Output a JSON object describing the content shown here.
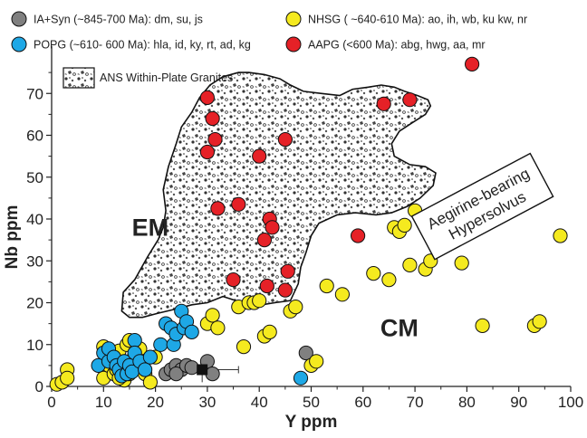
{
  "chart_data": {
    "type": "scatter",
    "xlabel": "Y ppm",
    "ylabel": "Nb ppm",
    "xlim": [
      0,
      100
    ],
    "ylim": [
      0,
      80
    ],
    "x_ticks": [
      "0",
      "10",
      "20",
      "30",
      "40",
      "50",
      "60",
      "70",
      "80",
      "90",
      "100"
    ],
    "y_ticks": [
      "0",
      "10",
      "20",
      "30",
      "40",
      "50",
      "60",
      "70"
    ],
    "grid": false,
    "legend_position": "top",
    "legend": [
      {
        "label": "IA+Syn (~845-700 Ma): dm, su, js",
        "color": "#808080"
      },
      {
        "label": "NHSG ( ~640-610 Ma): ao, ih, wb, ku kw, nr",
        "color": "#f5ea1f"
      },
      {
        "label": "POPG (~610- 600 Ma): hla, id, ky, rt, ad, kg",
        "color": "#1ea8e6"
      },
      {
        "label": "AAPG (<600 Ma): abg, hwg, aa, mr",
        "color": "#e52127"
      }
    ],
    "field_legend": "ANS Within-Plate Granites",
    "region_labels": [
      {
        "text": "EM",
        "x": 19,
        "y": 36
      },
      {
        "text": "CM",
        "x": 67,
        "y": 12
      }
    ],
    "annotation_box": {
      "line1": "Aegirine-bearing",
      "line2": "Hypersolvus",
      "x": 83,
      "y": 43
    },
    "errorbar_point": {
      "x": 29,
      "y": 4,
      "x_err_low": 4.5,
      "x_err_high": 7,
      "y_err": 3
    },
    "field_polygon": [
      [
        13.5,
        18
      ],
      [
        13.8,
        22.5
      ],
      [
        16,
        25.5
      ],
      [
        18.5,
        31
      ],
      [
        20.5,
        35
      ],
      [
        21.5,
        38
      ],
      [
        22,
        42
      ],
      [
        21.5,
        47
      ],
      [
        22.5,
        52.5
      ],
      [
        24,
        58
      ],
      [
        25,
        62
      ],
      [
        27,
        65.5
      ],
      [
        28.5,
        69
      ],
      [
        30.5,
        72
      ],
      [
        33,
        74
      ],
      [
        36,
        75
      ],
      [
        38,
        75
      ],
      [
        41,
        74.5
      ],
      [
        44,
        73.5
      ],
      [
        46,
        72
      ],
      [
        48.5,
        70.5
      ],
      [
        52,
        70
      ],
      [
        55.5,
        69.5
      ],
      [
        58,
        71
      ],
      [
        61,
        71.5
      ],
      [
        63.5,
        72
      ],
      [
        66,
        71.5
      ],
      [
        68,
        70.5
      ],
      [
        70.5,
        69.5
      ],
      [
        72.5,
        68.5
      ],
      [
        73,
        67
      ],
      [
        72,
        65
      ],
      [
        69.5,
        63
      ],
      [
        67,
        61
      ],
      [
        65.5,
        58
      ],
      [
        66,
        55
      ],
      [
        69,
        53
      ],
      [
        72,
        52.5
      ],
      [
        74,
        51
      ],
      [
        73.5,
        48
      ],
      [
        71,
        45
      ],
      [
        68.5,
        43
      ],
      [
        65.5,
        41.5
      ],
      [
        62.5,
        41
      ],
      [
        58.5,
        41.5
      ],
      [
        55,
        41
      ],
      [
        51.5,
        39
      ],
      [
        50,
        36
      ],
      [
        49,
        32
      ],
      [
        48,
        28.5
      ],
      [
        47.5,
        24.5
      ],
      [
        46,
        20.5
      ],
      [
        43,
        20
      ],
      [
        40.5,
        19.5
      ],
      [
        38,
        20
      ],
      [
        35.5,
        20.5
      ],
      [
        33,
        21.5
      ],
      [
        30,
        20
      ],
      [
        27,
        19.5
      ],
      [
        24,
        18.5
      ],
      [
        20.5,
        17.5
      ],
      [
        17.5,
        16.5
      ],
      [
        15,
        16.5
      ],
      [
        13.5,
        18
      ]
    ],
    "series": [
      {
        "name": "IA+Syn",
        "color": "#808080",
        "points": [
          [
            22,
            3
          ],
          [
            23,
            4
          ],
          [
            24,
            5
          ],
          [
            25,
            4
          ],
          [
            24,
            3
          ],
          [
            26,
            5
          ],
          [
            27,
            4.5
          ],
          [
            30,
            6
          ],
          [
            31,
            3
          ],
          [
            49,
            8
          ]
        ]
      },
      {
        "name": "NHSG",
        "color": "#f5ea1f",
        "points": [
          [
            1,
            0.5
          ],
          [
            2,
            1
          ],
          [
            3,
            4
          ],
          [
            3,
            2
          ],
          [
            10,
            2
          ],
          [
            10,
            9.5
          ],
          [
            11,
            5
          ],
          [
            12,
            3
          ],
          [
            12.5,
            4
          ],
          [
            13,
            7
          ],
          [
            13,
            8.5
          ],
          [
            14,
            1.5
          ],
          [
            14.5,
            10
          ],
          [
            15,
            11
          ],
          [
            16,
            7.5
          ],
          [
            16,
            5
          ],
          [
            17,
            9
          ],
          [
            17.5,
            6
          ],
          [
            18,
            3
          ],
          [
            19,
            1
          ],
          [
            20,
            7
          ],
          [
            13,
            2
          ],
          [
            15,
            3
          ],
          [
            30,
            15
          ],
          [
            31,
            17
          ],
          [
            32,
            14
          ],
          [
            36,
            19
          ],
          [
            37,
            9.5
          ],
          [
            38,
            20
          ],
          [
            39,
            20
          ],
          [
            40,
            20.5
          ],
          [
            41,
            12
          ],
          [
            42,
            13
          ],
          [
            46,
            18
          ],
          [
            47,
            19
          ],
          [
            50,
            5
          ],
          [
            51,
            6
          ],
          [
            53,
            24
          ],
          [
            56,
            22
          ],
          [
            62,
            27
          ],
          [
            65,
            25.5
          ],
          [
            66,
            38
          ],
          [
            67,
            37
          ],
          [
            68,
            38.5
          ],
          [
            69,
            29
          ],
          [
            70,
            42
          ],
          [
            72,
            28
          ],
          [
            73,
            30
          ],
          [
            79,
            29.5
          ],
          [
            83,
            14.5
          ],
          [
            93,
            14.5
          ],
          [
            94,
            15.5
          ],
          [
            98,
            36
          ]
        ]
      },
      {
        "name": "POPG",
        "color": "#1ea8e6",
        "points": [
          [
            9,
            5
          ],
          [
            10,
            8
          ],
          [
            11,
            6
          ],
          [
            11,
            9
          ],
          [
            12,
            7
          ],
          [
            12.5,
            5
          ],
          [
            13,
            4
          ],
          [
            13.5,
            2.5
          ],
          [
            14,
            6
          ],
          [
            14.5,
            3
          ],
          [
            15,
            5
          ],
          [
            15.5,
            3.5
          ],
          [
            16,
            11
          ],
          [
            16,
            8
          ],
          [
            17,
            6
          ],
          [
            18,
            4
          ],
          [
            19,
            7
          ],
          [
            21,
            10
          ],
          [
            22,
            15
          ],
          [
            23,
            14
          ],
          [
            23.5,
            10
          ],
          [
            24,
            12.5
          ],
          [
            25,
            18
          ],
          [
            25.5,
            14
          ],
          [
            26,
            15.5
          ],
          [
            27,
            13
          ],
          [
            48,
            2
          ]
        ]
      },
      {
        "name": "AAPG",
        "color": "#e52127",
        "points": [
          [
            30,
            69
          ],
          [
            31,
            64
          ],
          [
            31.5,
            59
          ],
          [
            30,
            56
          ],
          [
            32,
            42.5
          ],
          [
            35,
            25.5
          ],
          [
            36,
            43.5
          ],
          [
            40,
            55
          ],
          [
            42,
            40
          ],
          [
            41,
            35
          ],
          [
            42.5,
            38
          ],
          [
            41.5,
            24
          ],
          [
            45,
            59
          ],
          [
            45,
            23
          ],
          [
            45.5,
            27.5
          ],
          [
            59,
            36
          ],
          [
            64,
            67.5
          ],
          [
            69,
            68.5
          ],
          [
            81,
            77
          ]
        ]
      }
    ]
  }
}
